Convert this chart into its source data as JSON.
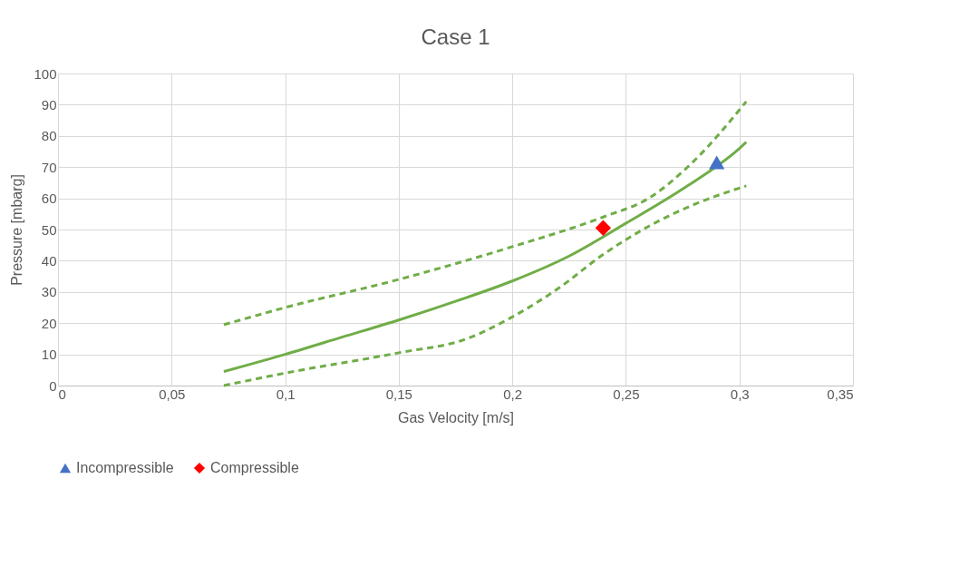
{
  "chart_data": {
    "type": "line",
    "title": "Case 1",
    "xlabel": "Gas Velocity [m/s]",
    "ylabel": "Pressure [mbarg]",
    "xlim": [
      0,
      0.35
    ],
    "xticks": [
      0,
      {
        "value": 0.05,
        "label": "0,05"
      },
      {
        "value": 0.1,
        "label": "0,1"
      },
      {
        "value": 0.15,
        "label": "0,15"
      },
      {
        "value": 0.2,
        "label": "0,2"
      },
      {
        "value": 0.25,
        "label": "0,25"
      },
      {
        "value": 0.3,
        "label": "0,3"
      },
      {
        "value": 0.35,
        "label": "0,35"
      }
    ],
    "ylim": [
      0,
      100
    ],
    "yticks": [
      0,
      10,
      20,
      30,
      40,
      50,
      60,
      70,
      80,
      90,
      100
    ],
    "grid": true,
    "legend": "bottom",
    "series": [
      {
        "type": "line",
        "color": "#70ad47",
        "line_style": "solid",
        "marker": "none",
        "x": [
          0.073,
          0.1,
          0.125,
          0.15,
          0.175,
          0.2,
          0.225,
          0.25,
          0.275,
          0.3,
          0.303
        ],
        "values": [
          4.5,
          10,
          15.5,
          21,
          27,
          33.5,
          41.5,
          52,
          63,
          76,
          78
        ]
      },
      {
        "type": "line",
        "color": "#70ad47",
        "line_style": "dashed",
        "marker": "none",
        "x": [
          0.073,
          0.1,
          0.15,
          0.2,
          0.24,
          0.26,
          0.28,
          0.303
        ],
        "values": [
          19.5,
          25,
          34,
          44.5,
          54,
          60,
          72,
          91
        ]
      },
      {
        "type": "line",
        "color": "#70ad47",
        "line_style": "dashed",
        "marker": "none",
        "x": [
          0.073,
          0.1,
          0.15,
          0.18,
          0.2,
          0.22,
          0.24,
          0.26,
          0.28,
          0.303
        ],
        "values": [
          0,
          4,
          10.5,
          15,
          22,
          31,
          42,
          51,
          58,
          64
        ]
      },
      {
        "type": "scatter",
        "name": "Incompressible",
        "color": "#4472c4",
        "marker": "triangle",
        "x": [
          0.29
        ],
        "values": [
          71.5
        ]
      },
      {
        "type": "scatter",
        "name": "Compressible",
        "color": "#ff0000",
        "marker": "diamond",
        "x": [
          0.24
        ],
        "values": [
          50.5
        ]
      }
    ]
  }
}
